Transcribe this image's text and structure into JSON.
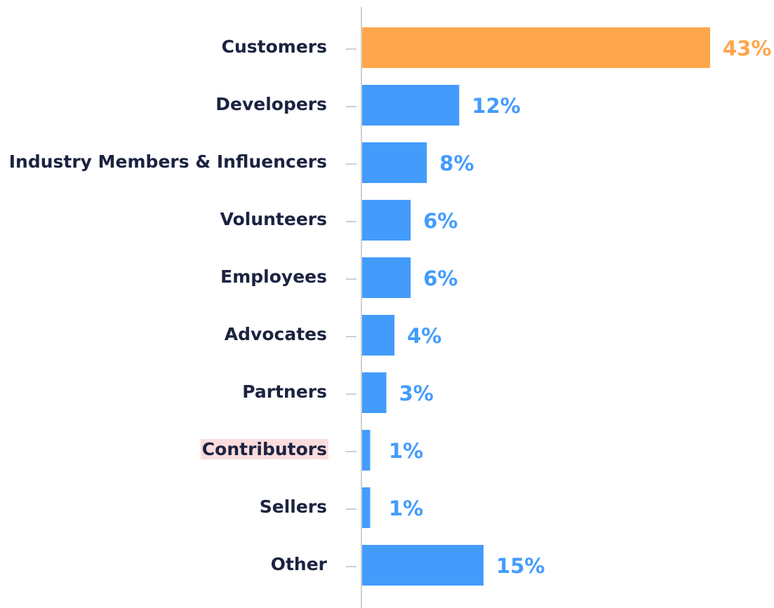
{
  "chart_data": {
    "type": "bar",
    "orientation": "horizontal",
    "categories": [
      "Customers",
      "Developers",
      "Industry Members & Influencers",
      "Volunteers",
      "Employees",
      "Advocates",
      "Partners",
      "Contributors",
      "Sellers",
      "Other"
    ],
    "values": [
      43,
      12,
      8,
      6,
      6,
      4,
      3,
      1,
      1,
      15
    ],
    "value_labels": [
      "43%",
      "12%",
      "8%",
      "6%",
      "6%",
      "4%",
      "3%",
      "1%",
      "1%",
      "15%"
    ],
    "colors": [
      "#ffa64d",
      "#439cfc",
      "#439cfc",
      "#439cfc",
      "#439cfc",
      "#439cfc",
      "#439cfc",
      "#439cfc",
      "#439cfc",
      "#439cfc"
    ],
    "highlighted_label": {
      "index": 7,
      "color": "#fbdcdc"
    }
  }
}
